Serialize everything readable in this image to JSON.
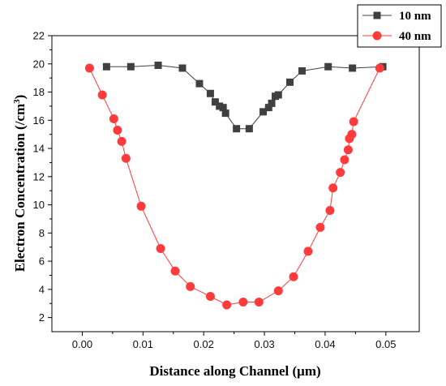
{
  "chart_data": {
    "type": "line",
    "title": "",
    "xlabel": "Distance along Channel (μm)",
    "ylabel_main": "Electron Concentration (/cm",
    "ylabel_sup": "3",
    "ylabel_close": ")",
    "xlim": [
      -0.005,
      0.0555
    ],
    "ylim": [
      1,
      22
    ],
    "xticks": [
      0.0,
      0.01,
      0.02,
      0.03,
      0.04,
      0.05
    ],
    "xtick_labels": [
      "0.00",
      "0.01",
      "0.02",
      "0.03",
      "0.04",
      "0.05"
    ],
    "yticks": [
      2,
      4,
      6,
      8,
      10,
      12,
      14,
      16,
      18,
      20,
      22
    ],
    "ytick_labels": [
      "2",
      "4",
      "6",
      "8",
      "10",
      "12",
      "14",
      "16",
      "18",
      "20",
      "22"
    ],
    "grid": false,
    "legend_position": "top-right",
    "series": [
      {
        "name": "10 nm",
        "color": "#404040",
        "marker": "square",
        "x": [
          0.004,
          0.008,
          0.0125,
          0.0165,
          0.0193,
          0.0211,
          0.0219,
          0.0226,
          0.0232,
          0.0236,
          0.0254,
          0.0275,
          0.0298,
          0.0307,
          0.0312,
          0.0318,
          0.0323,
          0.0342,
          0.0362,
          0.0405,
          0.0445,
          0.0495
        ],
        "y": [
          19.8,
          19.8,
          19.9,
          19.7,
          18.6,
          17.9,
          17.3,
          17.0,
          16.9,
          16.5,
          15.4,
          15.4,
          16.6,
          16.9,
          17.2,
          17.7,
          17.8,
          18.7,
          19.5,
          19.8,
          19.7,
          19.8
        ]
      },
      {
        "name": "40 nm",
        "color": "#ff3b3b",
        "marker": "circle",
        "x": [
          0.0012,
          0.0033,
          0.0052,
          0.0058,
          0.0065,
          0.0072,
          0.0097,
          0.0129,
          0.0153,
          0.0178,
          0.0211,
          0.0238,
          0.0265,
          0.0291,
          0.0323,
          0.0348,
          0.0372,
          0.0392,
          0.0408,
          0.0413,
          0.0425,
          0.0432,
          0.0438,
          0.044,
          0.0444,
          0.0447,
          0.049
        ],
        "y": [
          19.7,
          17.8,
          16.1,
          15.3,
          14.5,
          13.3,
          9.9,
          6.9,
          5.3,
          4.2,
          3.5,
          2.9,
          3.1,
          3.1,
          3.9,
          4.9,
          6.7,
          8.4,
          9.6,
          11.2,
          12.3,
          13.2,
          13.9,
          14.7,
          15.0,
          15.9,
          19.7
        ]
      }
    ]
  }
}
